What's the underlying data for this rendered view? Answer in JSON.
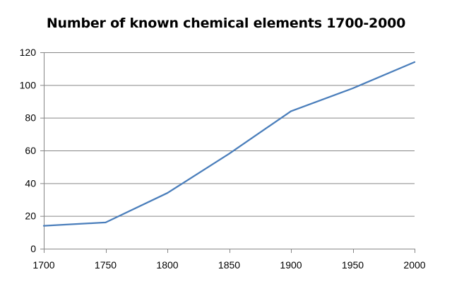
{
  "chart_data": {
    "type": "line",
    "title": "Number of known chemical elements 1700-2000",
    "xlabel": "",
    "ylabel": "",
    "xlim": [
      1700,
      2000
    ],
    "ylim": [
      0,
      120
    ],
    "x_ticks": [
      1700,
      1750,
      1800,
      1850,
      1900,
      1950,
      2000
    ],
    "y_ticks": [
      0,
      20,
      40,
      60,
      80,
      100,
      120
    ],
    "grid": "horizontal",
    "legend": "none",
    "series": [
      {
        "color": "#4A7EBB",
        "x": [
          1700,
          1750,
          1800,
          1850,
          1900,
          1950,
          2000
        ],
        "y": [
          14,
          16,
          34,
          58,
          84,
          98,
          114
        ]
      }
    ],
    "colors": {
      "grid": "#868686",
      "axis": "#868686"
    }
  }
}
